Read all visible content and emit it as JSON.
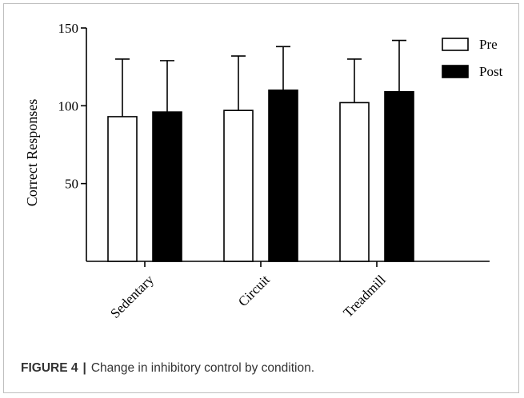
{
  "chart_data": {
    "type": "bar",
    "categories": [
      "Sedentary",
      "Circuit",
      "Treadmill"
    ],
    "series": [
      {
        "name": "Pre",
        "values": [
          93,
          97,
          102
        ],
        "error_upper": [
          130,
          132,
          130
        ],
        "color": "#ffffff"
      },
      {
        "name": "Post",
        "values": [
          96,
          110,
          109
        ],
        "error_upper": [
          129,
          138,
          142
        ],
        "color": "#000000"
      }
    ],
    "ylabel": "Correct Responses",
    "ylim": [
      0,
      150
    ],
    "yticks": [
      50,
      100,
      150
    ],
    "legend_position": "top-right",
    "grid": false
  },
  "caption": {
    "label": "FIGURE 4",
    "separator": "|",
    "text": "Change in inhibitory control by condition."
  }
}
